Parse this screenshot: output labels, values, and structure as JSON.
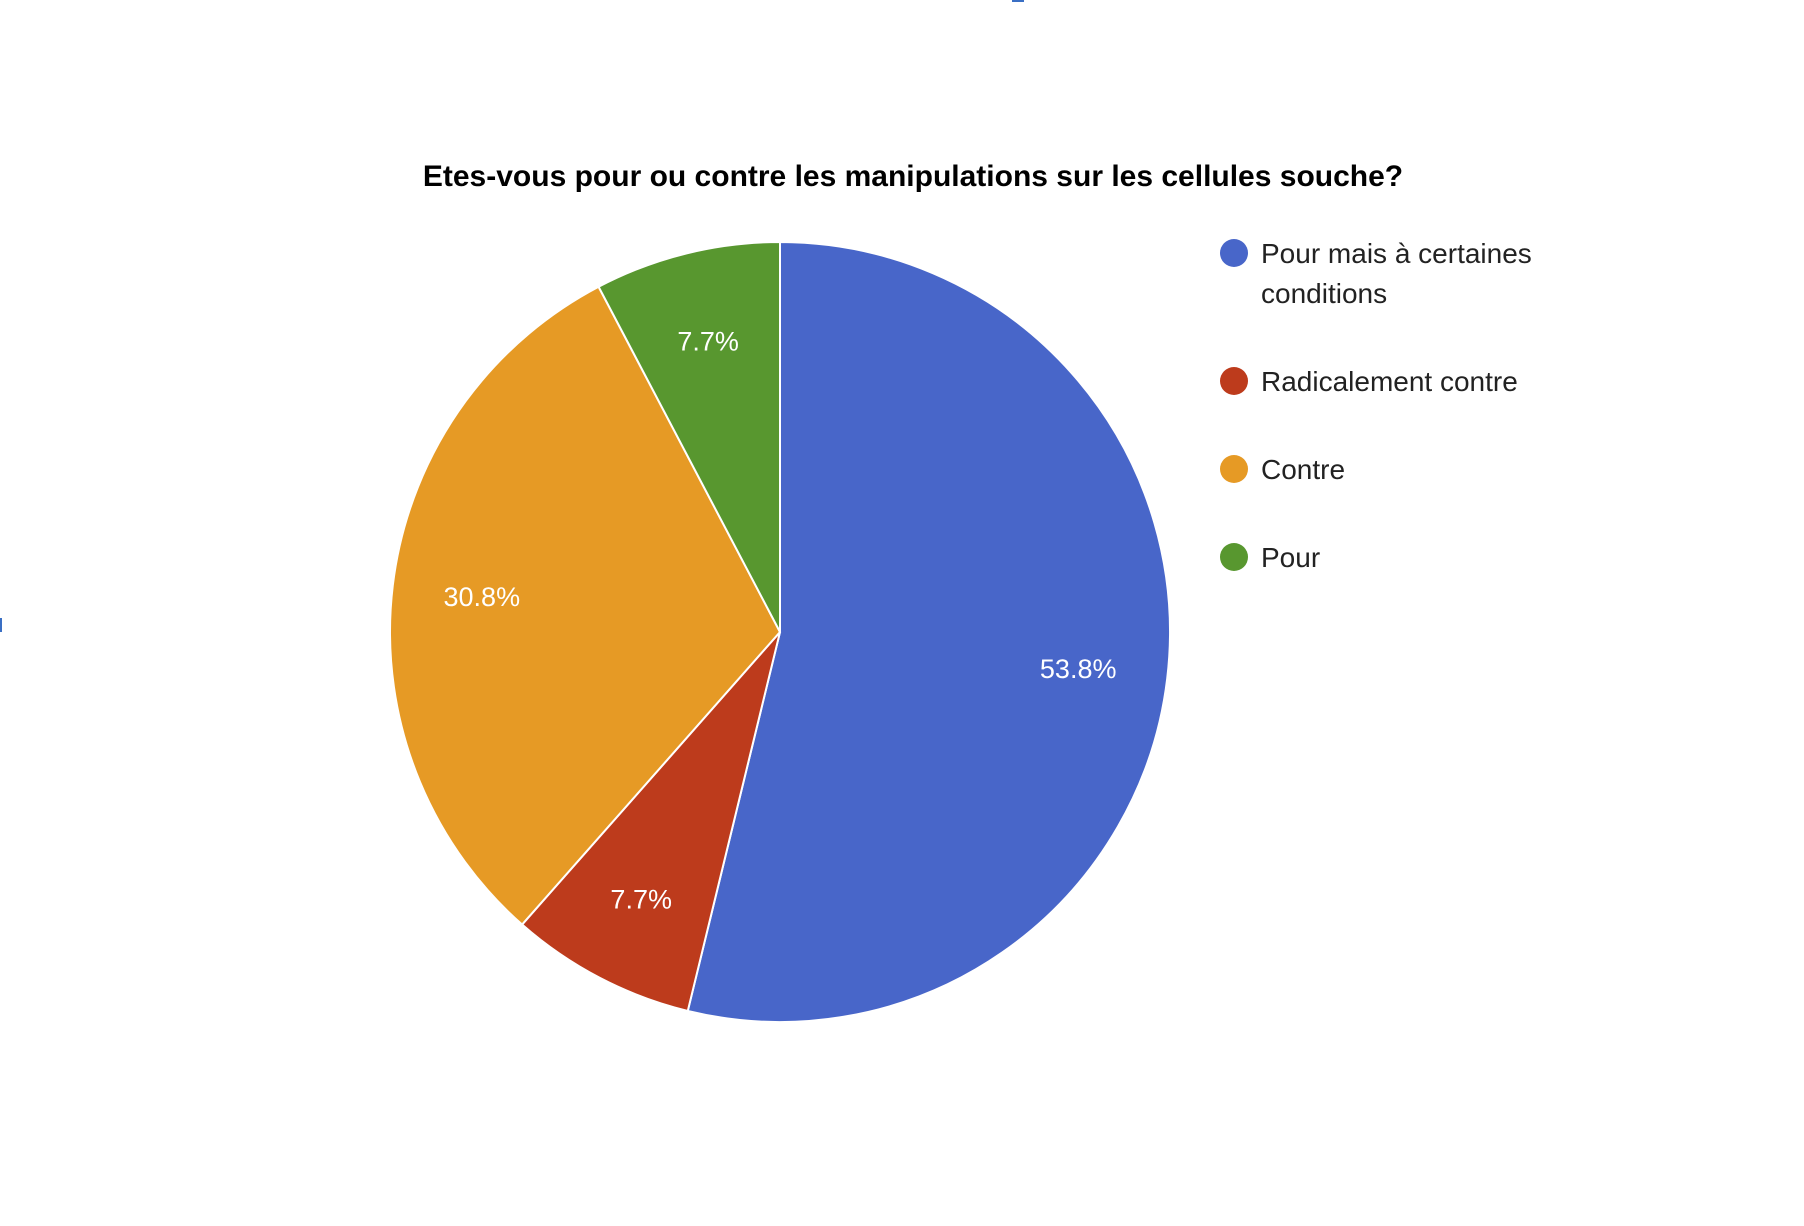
{
  "chart_data": {
    "type": "pie",
    "title": "Etes-vous pour ou contre les manipulations sur les cellules souche?",
    "slices": [
      {
        "name": "Pour mais à certaines conditions",
        "value": 53.8,
        "label": "53.8%",
        "color": "#4866c9"
      },
      {
        "name": "Radicalement contre",
        "value": 7.7,
        "label": "7.7%",
        "color": "#bd3b1c"
      },
      {
        "name": "Contre",
        "value": 30.8,
        "label": "30.8%",
        "color": "#e69a25"
      },
      {
        "name": "Pour",
        "value": 7.7,
        "label": "7.7%",
        "color": "#58972f"
      }
    ],
    "legend": {
      "placement": "right",
      "entries": [
        {
          "lines": [
            "Pour mais à certaines",
            "conditions"
          ],
          "color": "#4866c9"
        },
        {
          "lines": [
            "Radicalement contre"
          ],
          "color": "#bd3b1c"
        },
        {
          "lines": [
            "Contre"
          ],
          "color": "#e69a25"
        },
        {
          "lines": [
            "Pour"
          ],
          "color": "#58972f"
        }
      ]
    }
  }
}
